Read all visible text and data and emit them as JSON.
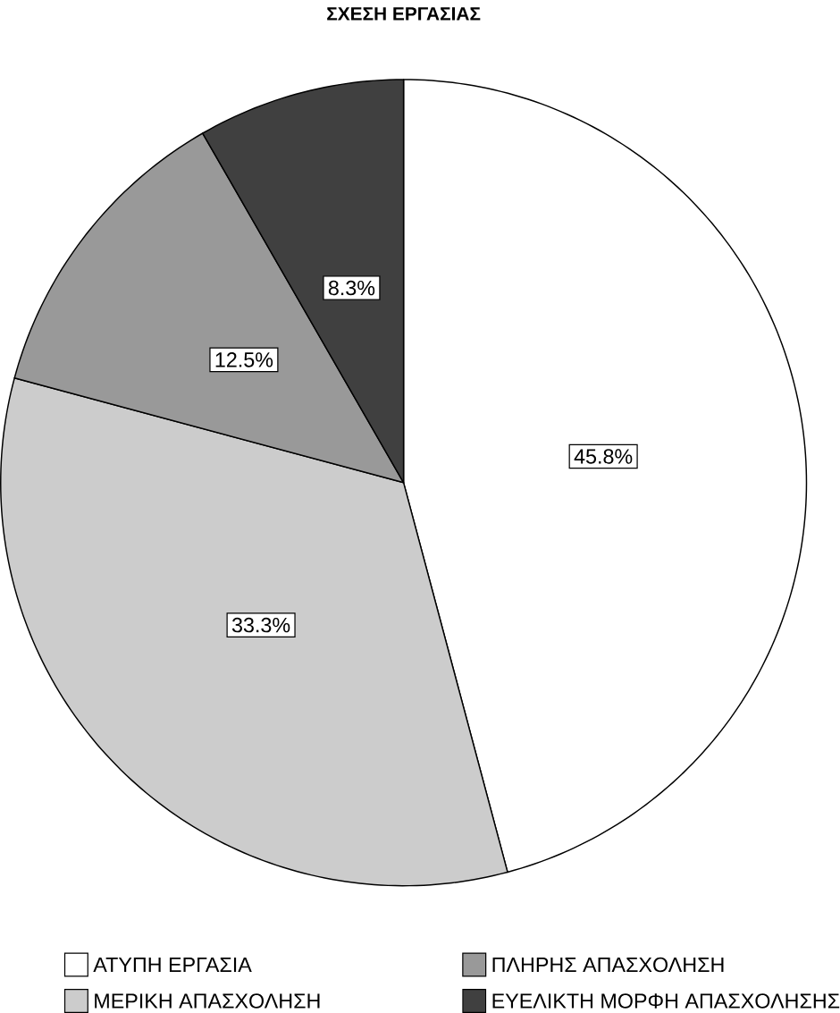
{
  "chart_data": {
    "type": "pie",
    "title": "ΣΧΕΣΗ ΕΡΓΑΣΙΑΣ",
    "categories": [
      "ΑΤΥΠΗ ΕΡΓΑΣΙΑ",
      "ΜΕΡΙΚΗ ΑΠΑΣΧΟΛΗΣΗ",
      "ΠΛΗΡΗΣ ΑΠΑΣΧΟΛΗΣΗ",
      "ΕΥΕΛΙΚΤΗ ΜΟΡΦΗ ΑΠΑΣΧΟΛΗΣΗΣ"
    ],
    "values": [
      45.8,
      33.3,
      12.5,
      8.3
    ],
    "colors": [
      "#ffffff",
      "#cccccc",
      "#999999",
      "#404040"
    ],
    "value_labels": [
      "45.8%",
      "33.3%",
      "12.5%",
      "8.3%"
    ],
    "legend": "bottom"
  }
}
